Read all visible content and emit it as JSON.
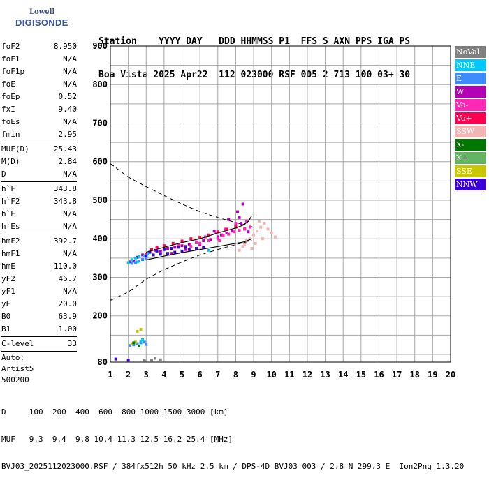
{
  "logo": {
    "line1": "Lowell",
    "line2": "DIGISONDE"
  },
  "header": {
    "row1": "Station    YYYY DAY   DDD HHMMSS P1  FFS S AXN PPS IGA PS",
    "row2": "Boa Vista 2025 Apr22  112 023000 RSF 005 2 713 100 03+ 30"
  },
  "params": [
    {
      "label": "foF2",
      "value": "8.950"
    },
    {
      "label": "foF1",
      "value": "N/A"
    },
    {
      "label": "foF1p",
      "value": "N/A"
    },
    {
      "label": "foE",
      "value": "N/A"
    },
    {
      "label": "foEp",
      "value": "0.52"
    },
    {
      "label": "fxI",
      "value": "9.40"
    },
    {
      "label": "foEs",
      "value": "N/A"
    },
    {
      "label": "fmin",
      "value": "2.95"
    },
    {
      "sep": true
    },
    {
      "label": "MUF(D)",
      "value": "25.43"
    },
    {
      "label": "M(D)",
      "value": "2.84"
    },
    {
      "label": "D",
      "value": "N/A"
    },
    {
      "sep": true
    },
    {
      "label": "h`F",
      "value": "343.8"
    },
    {
      "label": "h`F2",
      "value": "343.8"
    },
    {
      "label": "h`E",
      "value": "N/A"
    },
    {
      "label": "h`Es",
      "value": "N/A"
    },
    {
      "sep": true
    },
    {
      "label": "hmF2",
      "value": "392.7"
    },
    {
      "label": "hmF1",
      "value": "N/A"
    },
    {
      "label": "hmE",
      "value": "110.0"
    },
    {
      "label": "yF2",
      "value": "46.7"
    },
    {
      "label": "yF1",
      "value": "N/A"
    },
    {
      "label": "yE",
      "value": "20.0"
    },
    {
      "label": "B0",
      "value": "63.9"
    },
    {
      "label": "B1",
      "value": "1.00"
    },
    {
      "sep": true
    },
    {
      "label": "C-level",
      "value": "33"
    },
    {
      "sep": true
    }
  ],
  "autoscale": [
    "Auto:",
    "Artist5",
    "500200"
  ],
  "legend": [
    {
      "label": "NoVal",
      "color": "#808080"
    },
    {
      "label": "NNE",
      "color": "#00c8ff"
    },
    {
      "label": "E",
      "color": "#3c8cff"
    },
    {
      "label": "W",
      "color": "#b400b4"
    },
    {
      "label": "Vo-",
      "color": "#ff28b4"
    },
    {
      "label": "Vo+",
      "color": "#ff0050"
    },
    {
      "label": "SSW",
      "color": "#f5b4b4"
    },
    {
      "label": "X-",
      "color": "#007800"
    },
    {
      "label": "X+",
      "color": "#64b464"
    },
    {
      "label": "SSE",
      "color": "#c8c800"
    },
    {
      "label": "NNW",
      "color": "#3c00dc"
    }
  ],
  "footer": {
    "line1": "D     100  200  400  600  800 1000 1500 3000 [km]",
    "line2": "MUF   9.3  9.4  9.8 10.4 11.3 12.5 16.2 25.4 [MHz]",
    "line3": "BVJ03_2025112023000.RSF / 384fx512h 50 kHz 2.5 km / DPS-4D BVJ03 003 / 2.8 N 299.3 E  Ion2Png 1.3.20"
  },
  "chart_data": {
    "type": "scatter",
    "xlim": [
      1,
      20
    ],
    "ylim": [
      80,
      900
    ],
    "x_ticks": [
      "1",
      "2",
      "3",
      "4",
      "5",
      "6",
      "7",
      "8",
      "9",
      "10",
      "11",
      "12",
      "13",
      "14",
      "15",
      "16",
      "17",
      "18",
      "19",
      "20"
    ],
    "y_ticks": [
      {
        "label": "900",
        "value": 900
      },
      {
        "label": "800",
        "value": 800
      },
      {
        "label": "700",
        "value": 700
      },
      {
        "label": "600",
        "value": 600
      },
      {
        "label": "500",
        "value": 500
      },
      {
        "label": "400",
        "value": 400
      },
      {
        "label": "300",
        "value": 300
      },
      {
        "label": "200",
        "value": 200
      },
      {
        "label": "80",
        "value": 80
      }
    ],
    "grid": true,
    "series": [
      {
        "name": "W",
        "color": "#b400b4",
        "points": [
          [
            2.1,
            340
          ],
          [
            2.3,
            342
          ],
          [
            2.5,
            352
          ],
          [
            2.8,
            358
          ],
          [
            3.2,
            365
          ],
          [
            3.5,
            370
          ],
          [
            3.8,
            368
          ],
          [
            4.2,
            375
          ],
          [
            4.6,
            378
          ],
          [
            5.0,
            382
          ],
          [
            5.4,
            386
          ],
          [
            5.8,
            390
          ],
          [
            6.2,
            395
          ],
          [
            6.6,
            398
          ],
          [
            7.0,
            405
          ],
          [
            7.2,
            410
          ],
          [
            7.5,
            415
          ],
          [
            7.8,
            420
          ],
          [
            8.0,
            430
          ],
          [
            8.3,
            440
          ],
          [
            8.5,
            425
          ],
          [
            8.7,
            418
          ],
          [
            7.6,
            450
          ],
          [
            8.1,
            470
          ],
          [
            8.4,
            490
          ],
          [
            8.2,
            455
          ],
          [
            6.8,
            420
          ],
          [
            6.0,
            385
          ],
          [
            5.2,
            372
          ],
          [
            4.4,
            362
          ]
        ]
      },
      {
        "name": "Vo-",
        "color": "#ff28b4",
        "points": [
          [
            5.5,
            380
          ],
          [
            6.0,
            388
          ],
          [
            6.5,
            395
          ],
          [
            7.0,
            400
          ],
          [
            7.3,
            408
          ],
          [
            7.6,
            412
          ],
          [
            7.9,
            418
          ],
          [
            8.2,
            422
          ],
          [
            8.5,
            426
          ],
          [
            8.8,
            430
          ],
          [
            6.3,
            405
          ],
          [
            6.9,
            415
          ],
          [
            7.4,
            425
          ],
          [
            8.0,
            440
          ],
          [
            8.6,
            445
          ],
          [
            5.8,
            392
          ],
          [
            4.8,
            385
          ],
          [
            7.1,
            395
          ]
        ]
      },
      {
        "name": "Vo+",
        "color": "#ff0050",
        "points": [
          [
            3.0,
            360
          ],
          [
            3.3,
            372
          ],
          [
            3.6,
            378
          ],
          [
            4.0,
            382
          ],
          [
            4.5,
            388
          ],
          [
            5.0,
            394
          ],
          [
            5.5,
            400
          ],
          [
            6.0,
            404
          ],
          [
            6.5,
            410
          ],
          [
            7.0,
            418
          ],
          [
            7.5,
            425
          ],
          [
            8.0,
            432
          ]
        ]
      },
      {
        "name": "SSW",
        "color": "#f5b4b4",
        "points": [
          [
            8.2,
            370
          ],
          [
            8.5,
            385
          ],
          [
            8.8,
            400
          ],
          [
            9.0,
            410
          ],
          [
            9.2,
            420
          ],
          [
            9.4,
            430
          ],
          [
            9.6,
            440
          ],
          [
            9.8,
            425
          ],
          [
            10.0,
            415
          ],
          [
            10.2,
            405
          ],
          [
            8.6,
            395
          ],
          [
            9.1,
            388
          ],
          [
            9.5,
            400
          ],
          [
            8.9,
            375
          ],
          [
            8.4,
            380
          ],
          [
            9.3,
            445
          ]
        ]
      },
      {
        "name": "E",
        "color": "#3c8cff",
        "points": [
          [
            2.2,
            336
          ],
          [
            2.4,
            338
          ],
          [
            2.6,
            342
          ],
          [
            2.8,
            346
          ],
          [
            3.0,
            350
          ],
          [
            2.3,
            125
          ],
          [
            2.5,
            128
          ],
          [
            2.7,
            130
          ],
          [
            2.9,
            132
          ],
          [
            3.0,
            126
          ],
          [
            2.1,
            123
          ]
        ]
      },
      {
        "name": "NNE",
        "color": "#00c8ff",
        "points": [
          [
            2.0,
            338
          ],
          [
            2.2,
            345
          ],
          [
            2.4,
            350
          ],
          [
            2.6,
            354
          ],
          [
            2.9,
            356
          ],
          [
            3.1,
            360
          ],
          [
            2.5,
            340
          ],
          [
            2.7,
            134
          ],
          [
            2.8,
            138
          ],
          [
            6.5,
            370
          ]
        ]
      },
      {
        "name": "NNW",
        "color": "#3c00dc",
        "points": [
          [
            3.0,
            355
          ],
          [
            3.4,
            358
          ],
          [
            3.8,
            360
          ],
          [
            4.2,
            362
          ],
          [
            4.6,
            365
          ],
          [
            5.0,
            368
          ],
          [
            5.4,
            372
          ],
          [
            5.8,
            375
          ],
          [
            6.2,
            378
          ],
          [
            3.2,
            365
          ],
          [
            3.6,
            368
          ],
          [
            4.0,
            372
          ],
          [
            4.4,
            375
          ],
          [
            4.8,
            378
          ],
          [
            5.2,
            380
          ],
          [
            1.3,
            88
          ],
          [
            2.0,
            85
          ]
        ]
      },
      {
        "name": "SSE",
        "color": "#c8c800",
        "points": [
          [
            2.2,
            128
          ],
          [
            2.4,
            132
          ],
          [
            2.5,
            160
          ],
          [
            2.7,
            165
          ]
        ]
      },
      {
        "name": "X-",
        "color": "#007800",
        "points": [
          [
            2.3,
            130
          ],
          [
            2.6,
            122
          ]
        ]
      },
      {
        "name": "NoVal",
        "color": "#808080",
        "points": [
          [
            3.3,
            85
          ],
          [
            3.5,
            90
          ],
          [
            2.9,
            84
          ],
          [
            3.8,
            86
          ]
        ]
      }
    ],
    "profile_upper": [
      [
        3.0,
        365
      ],
      [
        4.0,
        378
      ],
      [
        5.0,
        390
      ],
      [
        6.0,
        400
      ],
      [
        7.0,
        415
      ],
      [
        8.0,
        428
      ],
      [
        8.4,
        435
      ],
      [
        8.7,
        445
      ],
      [
        8.9,
        460
      ]
    ],
    "profile_lower": [
      [
        3.0,
        345
      ],
      [
        4.0,
        355
      ],
      [
        5.0,
        364
      ],
      [
        6.0,
        372
      ],
      [
        7.0,
        380
      ],
      [
        8.0,
        388
      ],
      [
        8.5,
        392
      ],
      [
        8.9,
        400
      ]
    ],
    "muf_curve_upper": [
      [
        1.0,
        595
      ],
      [
        2.0,
        560
      ],
      [
        3.0,
        535
      ],
      [
        4.0,
        512
      ],
      [
        5.0,
        490
      ],
      [
        6.0,
        470
      ],
      [
        7.0,
        455
      ],
      [
        8.0,
        442
      ],
      [
        8.9,
        432
      ]
    ],
    "muf_curve_lower": [
      [
        1.0,
        240
      ],
      [
        2.0,
        262
      ],
      [
        3.0,
        295
      ],
      [
        4.0,
        320
      ],
      [
        5.0,
        340
      ],
      [
        6.0,
        358
      ],
      [
        7.0,
        372
      ],
      [
        8.0,
        385
      ],
      [
        8.9,
        395
      ]
    ]
  }
}
